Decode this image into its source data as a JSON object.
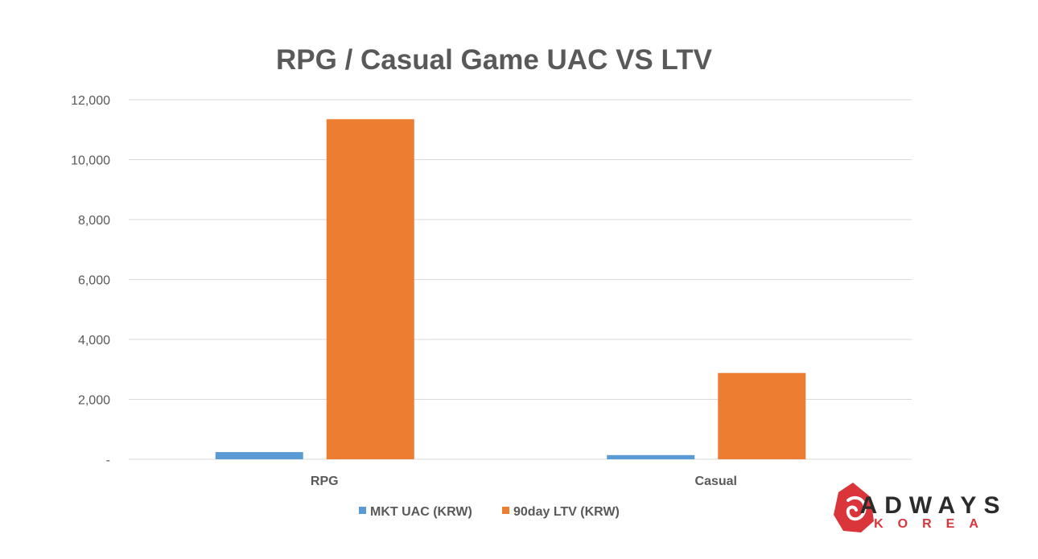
{
  "chart_data": {
    "type": "bar",
    "title": "RPG / Casual Game UAC VS LTV",
    "categories": [
      "RPG",
      "Casual"
    ],
    "series": [
      {
        "name": "MKT UAC (KRW)",
        "values": [
          240,
          140
        ],
        "color": "#5B9BD5"
      },
      {
        "name": "90day LTV  (KRW)",
        "values": [
          11350,
          2880
        ],
        "color": "#ED7D31"
      }
    ],
    "ylim": [
      0,
      12000
    ],
    "yticks": [
      {
        "value": 0,
        "label": "-"
      },
      {
        "value": 2000,
        "label": "2,000"
      },
      {
        "value": 4000,
        "label": "4,000"
      },
      {
        "value": 6000,
        "label": "6,000"
      },
      {
        "value": 8000,
        "label": "8,000"
      },
      {
        "value": 10000,
        "label": "10,000"
      },
      {
        "value": 12000,
        "label": "12,000"
      }
    ],
    "grid": true,
    "legend_position": "bottom"
  },
  "logo": {
    "line1": "ADWAYS",
    "line2": "KOREA",
    "primary_color": "#2b2b2b",
    "secondary_color": "#d9353b"
  }
}
